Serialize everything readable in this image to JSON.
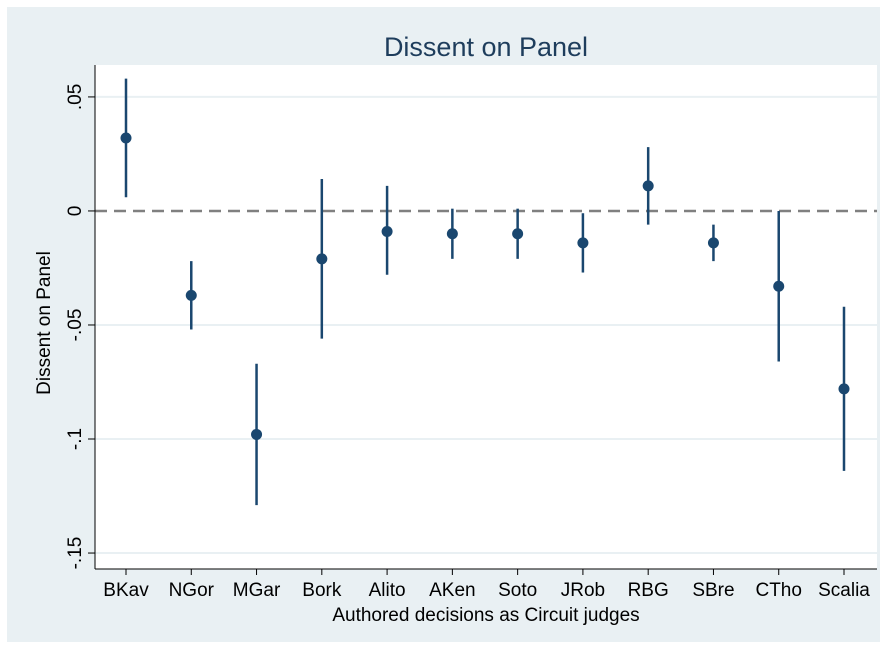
{
  "chart_data": {
    "type": "scatter",
    "title": "Dissent on Panel",
    "xlabel": "Authored decisions as Circuit judges",
    "ylabel": "Dissent on Panel",
    "categories": [
      "BKav",
      "NGor",
      "MGar",
      "Bork",
      "Alito",
      "AKen",
      "Soto",
      "JRob",
      "RBG",
      "SBre",
      "CTho",
      "Scalia"
    ],
    "series": [
      {
        "estimate": [
          0.032,
          -0.037,
          -0.098,
          -0.021,
          -0.009,
          -0.01,
          -0.01,
          -0.014,
          0.011,
          -0.014,
          -0.033,
          -0.078
        ],
        "ci_low": [
          0.006,
          -0.052,
          -0.129,
          -0.056,
          -0.028,
          -0.021,
          -0.021,
          -0.027,
          -0.006,
          -0.022,
          -0.066,
          -0.114
        ],
        "ci_high": [
          0.058,
          -0.022,
          -0.067,
          0.014,
          0.011,
          0.001,
          0.001,
          -0.001,
          0.028,
          -0.006,
          0.0,
          -0.042
        ]
      }
    ],
    "yticks": [
      0.05,
      0,
      -0.05,
      -0.1,
      -0.15
    ],
    "ytick_labels": [
      ".05",
      "0",
      "-.05",
      "-.1",
      "-.15"
    ],
    "ylim": [
      -0.157,
      0.064
    ],
    "reference_line": 0,
    "grid": true,
    "colors": {
      "marker": "#1a476f",
      "reference": "#808080",
      "grid": "#ffffff",
      "plot_bg": "#ffffff",
      "outer_bg": "#e9f0f3"
    }
  }
}
